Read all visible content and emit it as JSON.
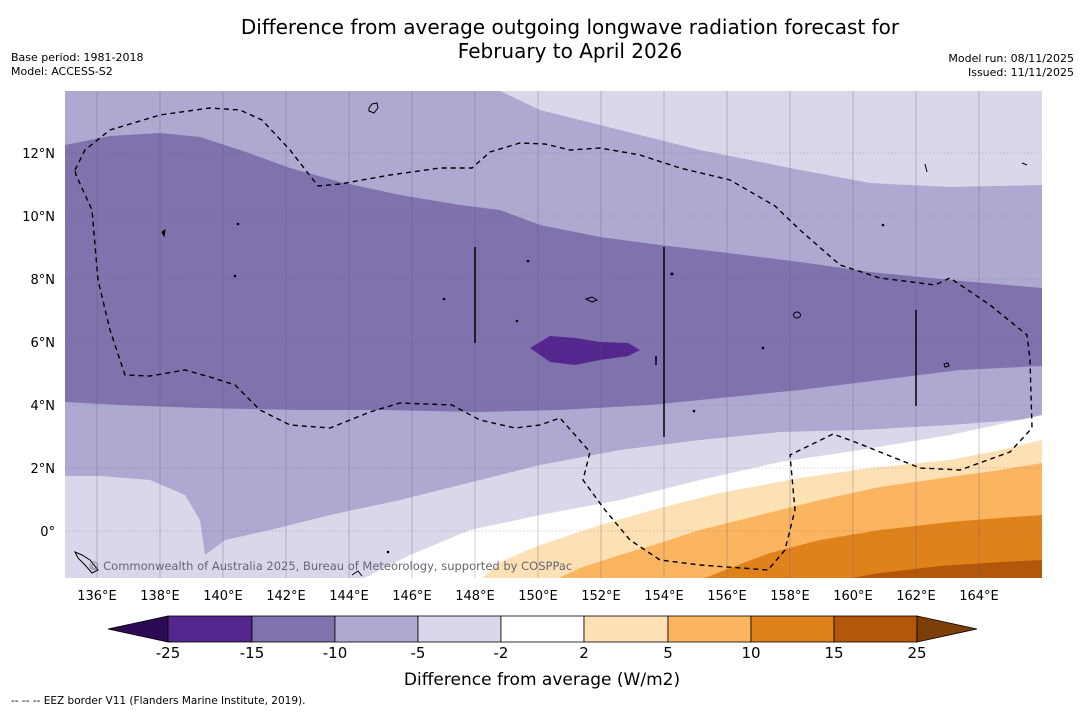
{
  "title": {
    "line1": "Difference from average outgoing longwave radiation forecast for",
    "line2": "February to April 2026"
  },
  "meta": {
    "base_period": "Base period: 1981-2018",
    "model": "Model: ACCESS-S2",
    "model_run": "Model run: 08/11/2025",
    "issued": "Issued: 11/11/2025"
  },
  "map": {
    "lon_labels": [
      "136°E",
      "138°E",
      "140°E",
      "142°E",
      "144°E",
      "146°E",
      "148°E",
      "150°E",
      "152°E",
      "154°E",
      "156°E",
      "158°E",
      "160°E",
      "162°E",
      "164°E"
    ],
    "lat_labels": [
      "12°N",
      "10°N",
      "8°N",
      "6°N",
      "4°N",
      "2°N",
      "0°"
    ],
    "copyright": "© Commonwealth of Australia 2025, Bureau of Meteorology, supported by COSPPac"
  },
  "legend": {
    "ticks": [
      "-25",
      "-15",
      "-10",
      "-5",
      "-2",
      "2",
      "5",
      "10",
      "15",
      "25"
    ],
    "label": "Difference from average (W/m2)",
    "colors": {
      "extend_low": "#2d0a54",
      "c1": "#54278f",
      "c2": "#7f72ad",
      "c3": "#aea9d0",
      "c4": "#d8d8ea",
      "c5": "#ffffff",
      "c6": "#fde0b4",
      "c7": "#fbb45f",
      "c8": "#e0821c",
      "c9": "#b3580b",
      "extend_high": "#7d3e0a"
    }
  },
  "footer": "--  --  -- EEZ border V11 (Flanders Marine Institute, 2019)."
}
